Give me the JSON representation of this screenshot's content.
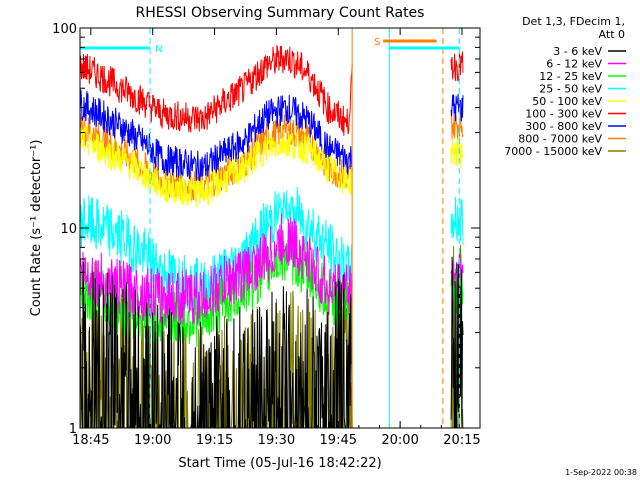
{
  "chart_data": {
    "type": "line",
    "title": "RHESSI Observing Summary Count Rates",
    "xlabel": "Start Time (05-Jul-16 18:42:22)",
    "ylabel": "Count Rate (s⁻¹ detector⁻¹)",
    "y_scale": "log",
    "ylim": [
      1,
      100
    ],
    "xlim_minutes": [
      0,
      97
    ],
    "x_tick_labels": [
      "18:45",
      "19:00",
      "19:15",
      "19:30",
      "19:45",
      "20:00",
      "20:15"
    ],
    "y_tick_labels": [
      "1",
      "10",
      "100"
    ],
    "legend_header": [
      "Det 1,3, FDecim 1,",
      "Att 0"
    ],
    "legend_placement": "right",
    "footer_date": "1-Sep-2022 00:38",
    "flags": [
      {
        "label": "N",
        "color": "#00ffff",
        "start_min": 0,
        "end_min": 17
      },
      {
        "label": "S",
        "color": "#ff7f00",
        "start_min": 73.5,
        "end_min": 86.5
      },
      {
        "label": "",
        "color": "#00ffff",
        "start_min": 75,
        "end_min": 92
      }
    ],
    "vertical_markers": [
      {
        "minute": 17,
        "color": "#00ffff",
        "style": "dashed"
      },
      {
        "minute": 66,
        "color": "#ff7f00",
        "style": "solid"
      },
      {
        "minute": 75,
        "color": "#00ffff",
        "style": "solid"
      },
      {
        "minute": 88,
        "color": "#ff7f00",
        "style": "dashed"
      },
      {
        "minute": 92,
        "color": "#00ffff",
        "style": "dashed"
      }
    ],
    "series": [
      {
        "name": "3 - 6 keV",
        "color": "#000000",
        "x": [
          0,
          10,
          20,
          30,
          40,
          50,
          60,
          65,
          90,
          93
        ],
        "y": [
          2.5,
          2,
          1.5,
          1.2,
          1.5,
          2,
          1.8,
          2.5,
          3,
          3
        ]
      },
      {
        "name": "6 - 12 keV",
        "color": "#ff00ff",
        "x": [
          0,
          10,
          20,
          30,
          40,
          45,
          50,
          60,
          65,
          90,
          93
        ],
        "y": [
          6,
          5,
          4.5,
          4.5,
          6,
          7,
          9,
          5,
          5,
          6,
          6
        ]
      },
      {
        "name": "12 - 25 keV",
        "color": "#00ff00",
        "x": [
          0,
          10,
          20,
          30,
          40,
          45,
          50,
          60,
          65,
          90,
          93
        ],
        "y": [
          5,
          4,
          3.5,
          3.5,
          5,
          6,
          7.5,
          4.5,
          4,
          5,
          5
        ]
      },
      {
        "name": "25 - 50 keV",
        "color": "#00ffff",
        "x": [
          0,
          10,
          20,
          30,
          40,
          45,
          50,
          60,
          65,
          90,
          93
        ],
        "y": [
          11,
          9,
          6,
          5,
          7,
          10,
          13,
          8,
          6,
          11,
          11
        ]
      },
      {
        "name": "50 - 100 keV",
        "color": "#ffff00",
        "x": [
          0,
          10,
          20,
          30,
          40,
          45,
          50,
          55,
          60,
          65,
          90,
          93
        ],
        "y": [
          28,
          22,
          16,
          15,
          20,
          25,
          27,
          25,
          20,
          17,
          24,
          24
        ]
      },
      {
        "name": "100 - 300 keV",
        "color": "#ff0000",
        "x": [
          0,
          10,
          20,
          30,
          40,
          45,
          50,
          55,
          60,
          65,
          66,
          90,
          93
        ],
        "y": [
          65,
          50,
          37,
          35,
          50,
          65,
          72,
          60,
          40,
          33,
          55,
          65,
          65
        ]
      },
      {
        "name": "300 - 800 keV",
        "color": "#0000ff",
        "x": [
          0,
          10,
          20,
          30,
          40,
          45,
          50,
          55,
          60,
          65,
          90,
          93
        ],
        "y": [
          42,
          32,
          22,
          20,
          27,
          36,
          40,
          35,
          25,
          22,
          40,
          40
        ]
      },
      {
        "name": "800 - 7000 keV",
        "color": "#ff7f00",
        "x": [
          0,
          10,
          20,
          30,
          40,
          45,
          50,
          55,
          60,
          65,
          90,
          93
        ],
        "y": [
          32,
          24,
          17,
          16,
          21,
          28,
          31,
          28,
          20,
          18,
          33,
          33
        ]
      },
      {
        "name": "7000 - 15000 keV",
        "color": "#808000",
        "x": [
          0,
          10,
          20,
          30,
          40,
          50,
          60,
          65,
          90,
          93
        ],
        "y": [
          3,
          2,
          1.5,
          1.2,
          1.5,
          1.8,
          1.5,
          2.5,
          3,
          3
        ]
      }
    ]
  }
}
